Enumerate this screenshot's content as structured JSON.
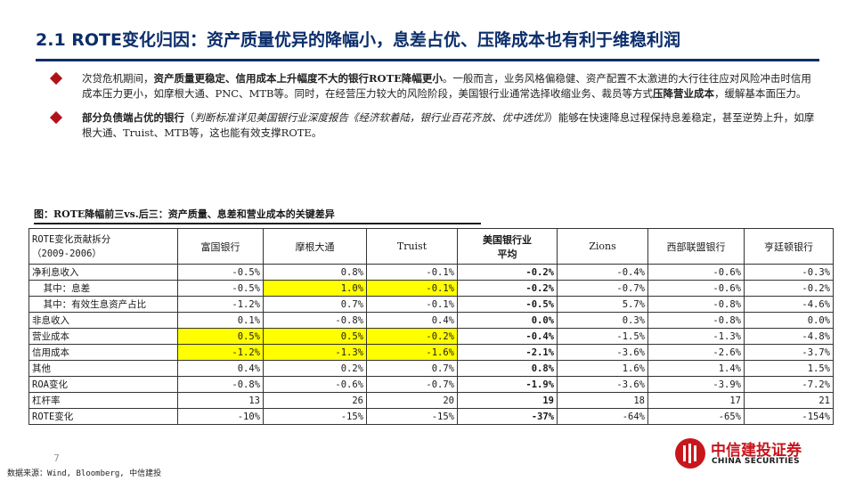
{
  "header": {
    "title": "2.1 ROTE变化归因：资产质量优异的降幅小，息差占优、压降成本也有利于维稳利润"
  },
  "bullets": [
    {
      "parts": [
        {
          "text": "次贷危机期间，",
          "style": "normal"
        },
        {
          "text": "资产质量更稳定、信用成本上升幅度不大的银行ROTE降幅更小",
          "style": "bold"
        },
        {
          "text": "。一般而言，业务风格偏稳健、资产配置不太激进的大行往往应对风险冲击时信用成本压力更小，如摩根大通、PNC、MTB等。同时，在经营压力较大的风险阶段，美国银行业通常选择收缩业务、裁员等方式",
          "style": "normal"
        },
        {
          "text": "压降营业成本",
          "style": "bold"
        },
        {
          "text": "，缓解基本面压力。",
          "style": "normal"
        }
      ]
    },
    {
      "parts": [
        {
          "text": "部分负债端占优的银行",
          "style": "bold"
        },
        {
          "text": "（",
          "style": "normal"
        },
        {
          "text": "判断标准详见美国银行业深度报告《经济软着陆，银行业百花齐放、优中选优》",
          "style": "italic"
        },
        {
          "text": "）能够在快速降息过程保持息差稳定，甚至逆势上升，如摩根大通、Truist、MTB等，这也能有效支撑ROTE。",
          "style": "normal"
        }
      ]
    }
  ],
  "figure": {
    "caption": "图：ROTE降幅前三vs.后三：资产质量、息差和营业成本的关键差异"
  },
  "table": {
    "header_first": [
      "ROTE变化贡献拆分",
      "（2009-2006）"
    ],
    "columns": [
      {
        "label": "富国银行",
        "bold": false
      },
      {
        "label": "摩根大通",
        "bold": false
      },
      {
        "label": "Truist",
        "bold": false
      },
      {
        "label": "美国银行业\n平均",
        "bold": true
      },
      {
        "label": "Zions",
        "bold": false
      },
      {
        "label": "西部联盟银行",
        "bold": false
      },
      {
        "label": "亨廷顿银行",
        "bold": false
      }
    ],
    "rows": [
      {
        "label": "净利息收入",
        "values": [
          "-0.5%",
          "0.8%",
          "-0.1%",
          "-0.2%",
          "-0.4%",
          "-0.6%",
          "-0.3%"
        ],
        "highlight": []
      },
      {
        "label": "  其中：息差",
        "values": [
          "-0.5%",
          "1.0%",
          "-0.1%",
          "-0.2%",
          "-0.7%",
          "-0.6%",
          "-0.2%"
        ],
        "highlight": [
          1,
          2
        ]
      },
      {
        "label": "  其中：有效生息资产占比",
        "values": [
          "-1.2%",
          "0.7%",
          "-0.1%",
          "-0.5%",
          "5.7%",
          "-0.8%",
          "-4.6%"
        ],
        "highlight": []
      },
      {
        "label": "非息收入",
        "values": [
          "0.1%",
          "-0.8%",
          "0.4%",
          "0.0%",
          "0.3%",
          "-0.8%",
          "0.0%"
        ],
        "highlight": []
      },
      {
        "label": "营业成本",
        "values": [
          "0.5%",
          "0.5%",
          "-0.2%",
          "-0.4%",
          "-1.5%",
          "-1.3%",
          "-4.8%"
        ],
        "highlight": [
          0,
          1,
          2
        ]
      },
      {
        "label": "信用成本",
        "values": [
          "-1.2%",
          "-1.3%",
          "-1.6%",
          "-2.1%",
          "-3.6%",
          "-2.6%",
          "-3.7%"
        ],
        "highlight": [
          0,
          1,
          2
        ]
      },
      {
        "label": "其他",
        "values": [
          "0.4%",
          "0.2%",
          "0.7%",
          "0.8%",
          "1.6%",
          "1.4%",
          "1.5%"
        ],
        "highlight": []
      },
      {
        "label": "ROA变化",
        "values": [
          "-0.8%",
          "-0.6%",
          "-0.7%",
          "-1.9%",
          "-3.6%",
          "-3.9%",
          "-7.2%"
        ],
        "highlight": []
      },
      {
        "label": "杠杆率",
        "values": [
          "13",
          "26",
          "20",
          "19",
          "18",
          "17",
          "21"
        ],
        "highlight": []
      },
      {
        "label": "ROTE变化",
        "values": [
          "-10%",
          "-15%",
          "-15%",
          "-37%",
          "-64%",
          "-65%",
          "-154%"
        ],
        "highlight": []
      }
    ],
    "bold_column": 3,
    "highlight_color": "#ffff00"
  },
  "footer": {
    "page_number": "7",
    "source": "数据来源：Wind, Bloomberg, 中信建投"
  },
  "logo": {
    "name_cn": "中信建投证券",
    "name_en": "CHINA SECURITIES",
    "color": "#c8161d"
  },
  "colors": {
    "title": "#0b2d6b",
    "bullet_marker": "#b1121a"
  }
}
